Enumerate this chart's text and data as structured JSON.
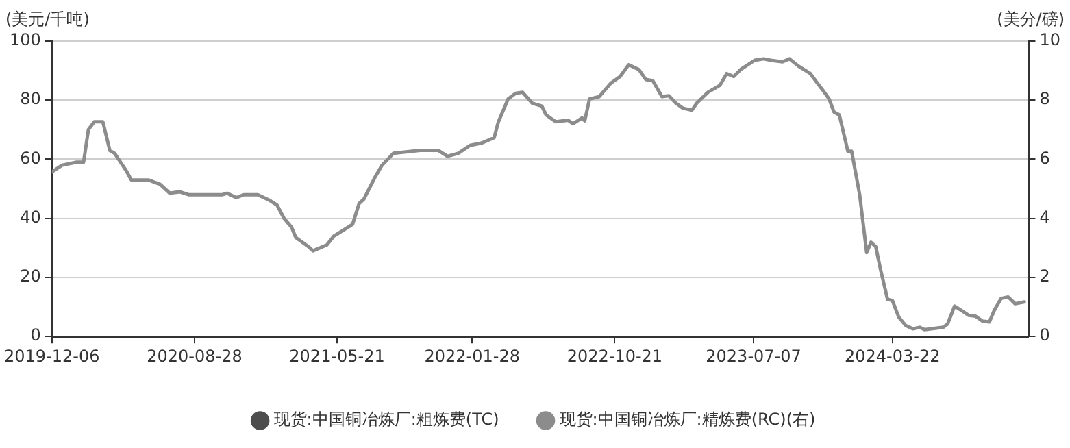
{
  "chart_data": {
    "type": "line",
    "ylabel": "(美元/千吨)",
    "y2label": "(美分/磅)",
    "x": [
      "2019-12-06",
      "2019-12-25",
      "2020-01-21",
      "2020-02-03",
      "2020-02-12",
      "2020-02-23",
      "2020-03-10",
      "2020-03-23",
      "2020-04-01",
      "2020-04-23",
      "2020-05-02",
      "2020-06-03",
      "2020-06-25",
      "2020-07-13",
      "2020-07-31",
      "2020-08-17",
      "2020-10-19",
      "2020-10-28",
      "2020-11-14",
      "2020-11-28",
      "2020-12-24",
      "2021-01-16",
      "2021-01-29",
      "2021-02-11",
      "2021-02-25",
      "2021-03-05",
      "2021-03-28",
      "2021-04-06",
      "2021-05-02",
      "2021-05-15",
      "2021-06-02",
      "2021-06-19",
      "2021-07-01",
      "2021-07-10",
      "2021-07-31",
      "2021-08-13",
      "2021-09-03",
      "2021-10-23",
      "2021-11-26",
      "2021-12-13",
      "2022-01-02",
      "2022-01-24",
      "2022-02-15",
      "2022-03-10",
      "2022-03-18",
      "2022-04-05",
      "2022-04-19",
      "2022-05-02",
      "2022-05-20",
      "2022-06-07",
      "2022-06-15",
      "2022-07-03",
      "2022-07-26",
      "2022-08-04",
      "2022-08-21",
      "2022-08-26",
      "2022-09-04",
      "2022-09-22",
      "2022-10-14",
      "2022-10-31",
      "2022-11-16",
      "2022-12-05",
      "2022-12-18",
      "2022-12-31",
      "2023-01-17",
      "2023-01-30",
      "2023-02-12",
      "2023-02-25",
      "2023-03-14",
      "2023-03-23",
      "2023-04-13",
      "2023-05-05",
      "2023-05-18",
      "2023-05-31",
      "2023-06-13",
      "2023-07-09",
      "2023-07-26",
      "2023-08-08",
      "2023-08-30",
      "2023-09-12",
      "2023-09-29",
      "2023-10-21",
      "2023-11-03",
      "2023-11-16",
      "2023-11-25",
      "2023-12-04",
      "2023-12-14",
      "2023-12-30",
      "2024-01-06",
      "2024-01-21",
      "2024-02-03",
      "2024-02-11",
      "2024-02-20",
      "2024-02-29",
      "2024-03-13",
      "2024-03-22",
      "2024-04-03",
      "2024-04-16",
      "2024-04-29",
      "2024-05-12",
      "2024-05-21",
      "2024-06-25",
      "2024-07-03",
      "2024-07-16",
      "2024-07-29",
      "2024-08-11",
      "2024-08-24",
      "2024-09-06",
      "2024-09-19",
      "2024-09-28",
      "2024-10-11",
      "2024-10-24",
      "2024-11-06",
      "2024-11-23"
    ],
    "series": [
      {
        "name": "现货:中国铜冶炼厂:粗炼费(TC)",
        "color": "#4d4d4d",
        "values": [
          null,
          null,
          null,
          null,
          null,
          null,
          null,
          null,
          null,
          null,
          null,
          null,
          null,
          null,
          null,
          null,
          null,
          null,
          null,
          null,
          null,
          null,
          null,
          null,
          null,
          null,
          null,
          null,
          null,
          null,
          null,
          null,
          null,
          null,
          null,
          null,
          null,
          null,
          null,
          null,
          null,
          null,
          null,
          null,
          null,
          null,
          null,
          null,
          null,
          null,
          null,
          null,
          null,
          null,
          null,
          null,
          null,
          null,
          null,
          null,
          null,
          null,
          null,
          null,
          null,
          null,
          null,
          null,
          null,
          null,
          null,
          null,
          null,
          null,
          null,
          null,
          null,
          null,
          null,
          null,
          null,
          null,
          null,
          null,
          null,
          null,
          null,
          null,
          null,
          null,
          null,
          null,
          null,
          null,
          null,
          null,
          null,
          null,
          null,
          null,
          null,
          null,
          null,
          null,
          null,
          null,
          null,
          null,
          null,
          null,
          null,
          null,
          null,
          null
        ]
      },
      {
        "name": "现货:中国铜冶炼厂:精炼费(RC)(右)",
        "color": "#8c8c8c",
        "axis": "y2",
        "values": [
          5.57,
          5.8,
          5.9,
          5.9,
          7.0,
          7.27,
          7.27,
          6.3,
          6.2,
          5.6,
          5.3,
          5.3,
          5.15,
          4.85,
          4.9,
          4.8,
          4.8,
          4.85,
          4.7,
          4.8,
          4.8,
          4.6,
          4.45,
          4.0,
          3.7,
          3.35,
          3.05,
          2.9,
          3.1,
          3.4,
          3.6,
          3.8,
          4.5,
          4.65,
          5.4,
          5.8,
          6.2,
          6.3,
          6.3,
          6.1,
          6.2,
          6.47,
          6.55,
          6.73,
          7.27,
          8.04,
          8.23,
          8.27,
          7.9,
          7.8,
          7.5,
          7.27,
          7.32,
          7.2,
          7.4,
          7.3,
          8.04,
          8.12,
          8.58,
          8.8,
          9.2,
          9.04,
          8.7,
          8.66,
          8.12,
          8.15,
          7.9,
          7.73,
          7.66,
          7.9,
          8.27,
          8.5,
          8.9,
          8.8,
          9.04,
          9.35,
          9.4,
          9.35,
          9.3,
          9.4,
          9.15,
          8.9,
          8.58,
          8.27,
          8.04,
          7.6,
          7.5,
          6.27,
          6.27,
          4.8,
          2.84,
          3.19,
          3.04,
          2.26,
          1.26,
          1.22,
          0.65,
          0.37,
          0.26,
          0.31,
          0.23,
          0.31,
          0.42,
          1.03,
          0.88,
          0.72,
          0.69,
          0.52,
          0.49,
          0.88,
          1.29,
          1.34,
          1.11,
          1.17
        ]
      }
    ],
    "xlim": [
      "2019-12-06",
      "2024-12-01"
    ],
    "xticks": [
      "2019-12-06",
      "2020-08-28",
      "2021-05-21",
      "2022-01-28",
      "2022-10-21",
      "2023-07-07",
      "2024-03-22"
    ],
    "ylim": [
      0,
      100
    ],
    "yticks": [
      0,
      20,
      40,
      60,
      80,
      100
    ],
    "y2lim": [
      0,
      10
    ],
    "y2ticks": [
      0,
      2,
      4,
      6,
      8,
      10
    ],
    "grid": "y",
    "legend": "bottom",
    "marker": "none",
    "line_style": "solid"
  }
}
